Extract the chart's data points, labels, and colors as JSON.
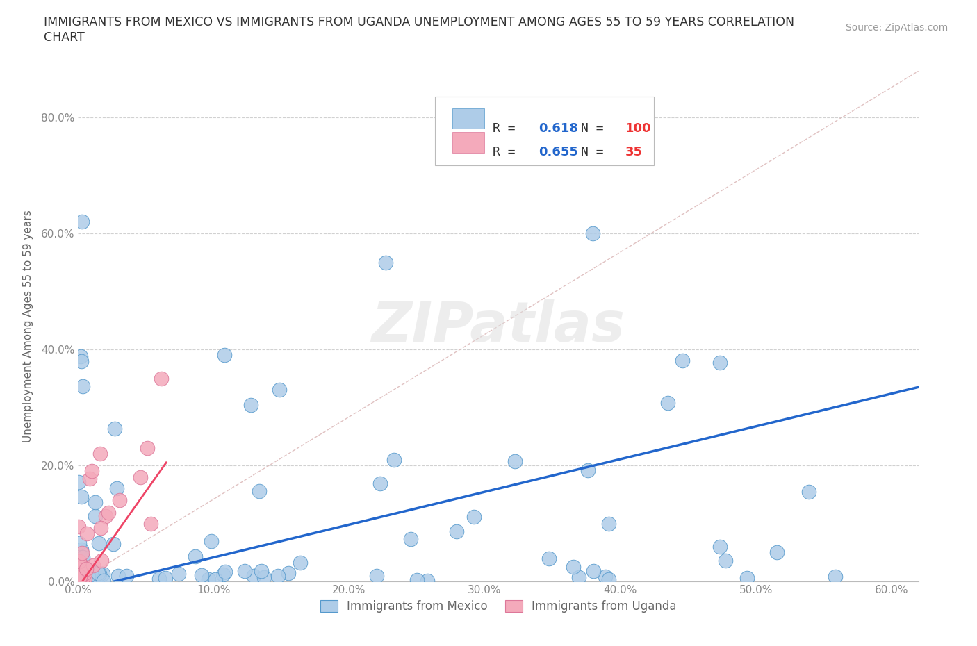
{
  "title_line1": "IMMIGRANTS FROM MEXICO VS IMMIGRANTS FROM UGANDA UNEMPLOYMENT AMONG AGES 55 TO 59 YEARS CORRELATION",
  "title_line2": "CHART",
  "source_text": "Source: ZipAtlas.com",
  "ylabel": "Unemployment Among Ages 55 to 59 years",
  "xlim": [
    0.0,
    0.62
  ],
  "ylim": [
    0.0,
    0.88
  ],
  "mexico_color": "#AECCE8",
  "mexico_edge_color": "#5599CC",
  "uganda_color": "#F4AABB",
  "uganda_edge_color": "#DD7799",
  "mexico_line_color": "#2266CC",
  "uganda_line_color": "#EE4466",
  "diag_color": "#DDBBBB",
  "watermark_color": "#DDDDDD",
  "legend_r_mexico": "0.618",
  "legend_n_mexico": "100",
  "legend_r_uganda": "0.655",
  "legend_n_uganda": "35",
  "r_value_color": "#2266CC",
  "n_value_color": "#EE3333",
  "tick_color": "#888888",
  "label_color": "#666666",
  "title_color": "#333333",
  "source_color": "#999999",
  "x_tick_vals": [
    0.0,
    0.1,
    0.2,
    0.3,
    0.4,
    0.5,
    0.6
  ],
  "x_tick_labels": [
    "0.0%",
    "10.0%",
    "20.0%",
    "30.0%",
    "40.0%",
    "50.0%",
    "60.0%"
  ],
  "y_tick_vals": [
    0.0,
    0.2,
    0.4,
    0.6,
    0.8
  ],
  "y_tick_labels": [
    "0.0%",
    "20.0%",
    "40.0%",
    "60.0%",
    "80.0%"
  ],
  "mex_line_x0": 0.0,
  "mex_line_x1": 0.62,
  "mex_line_y0": -0.015,
  "mex_line_y1": 0.335,
  "uga_line_x0": 0.0,
  "uga_line_x1": 0.065,
  "uga_line_y0": -0.01,
  "uga_line_y1": 0.205
}
